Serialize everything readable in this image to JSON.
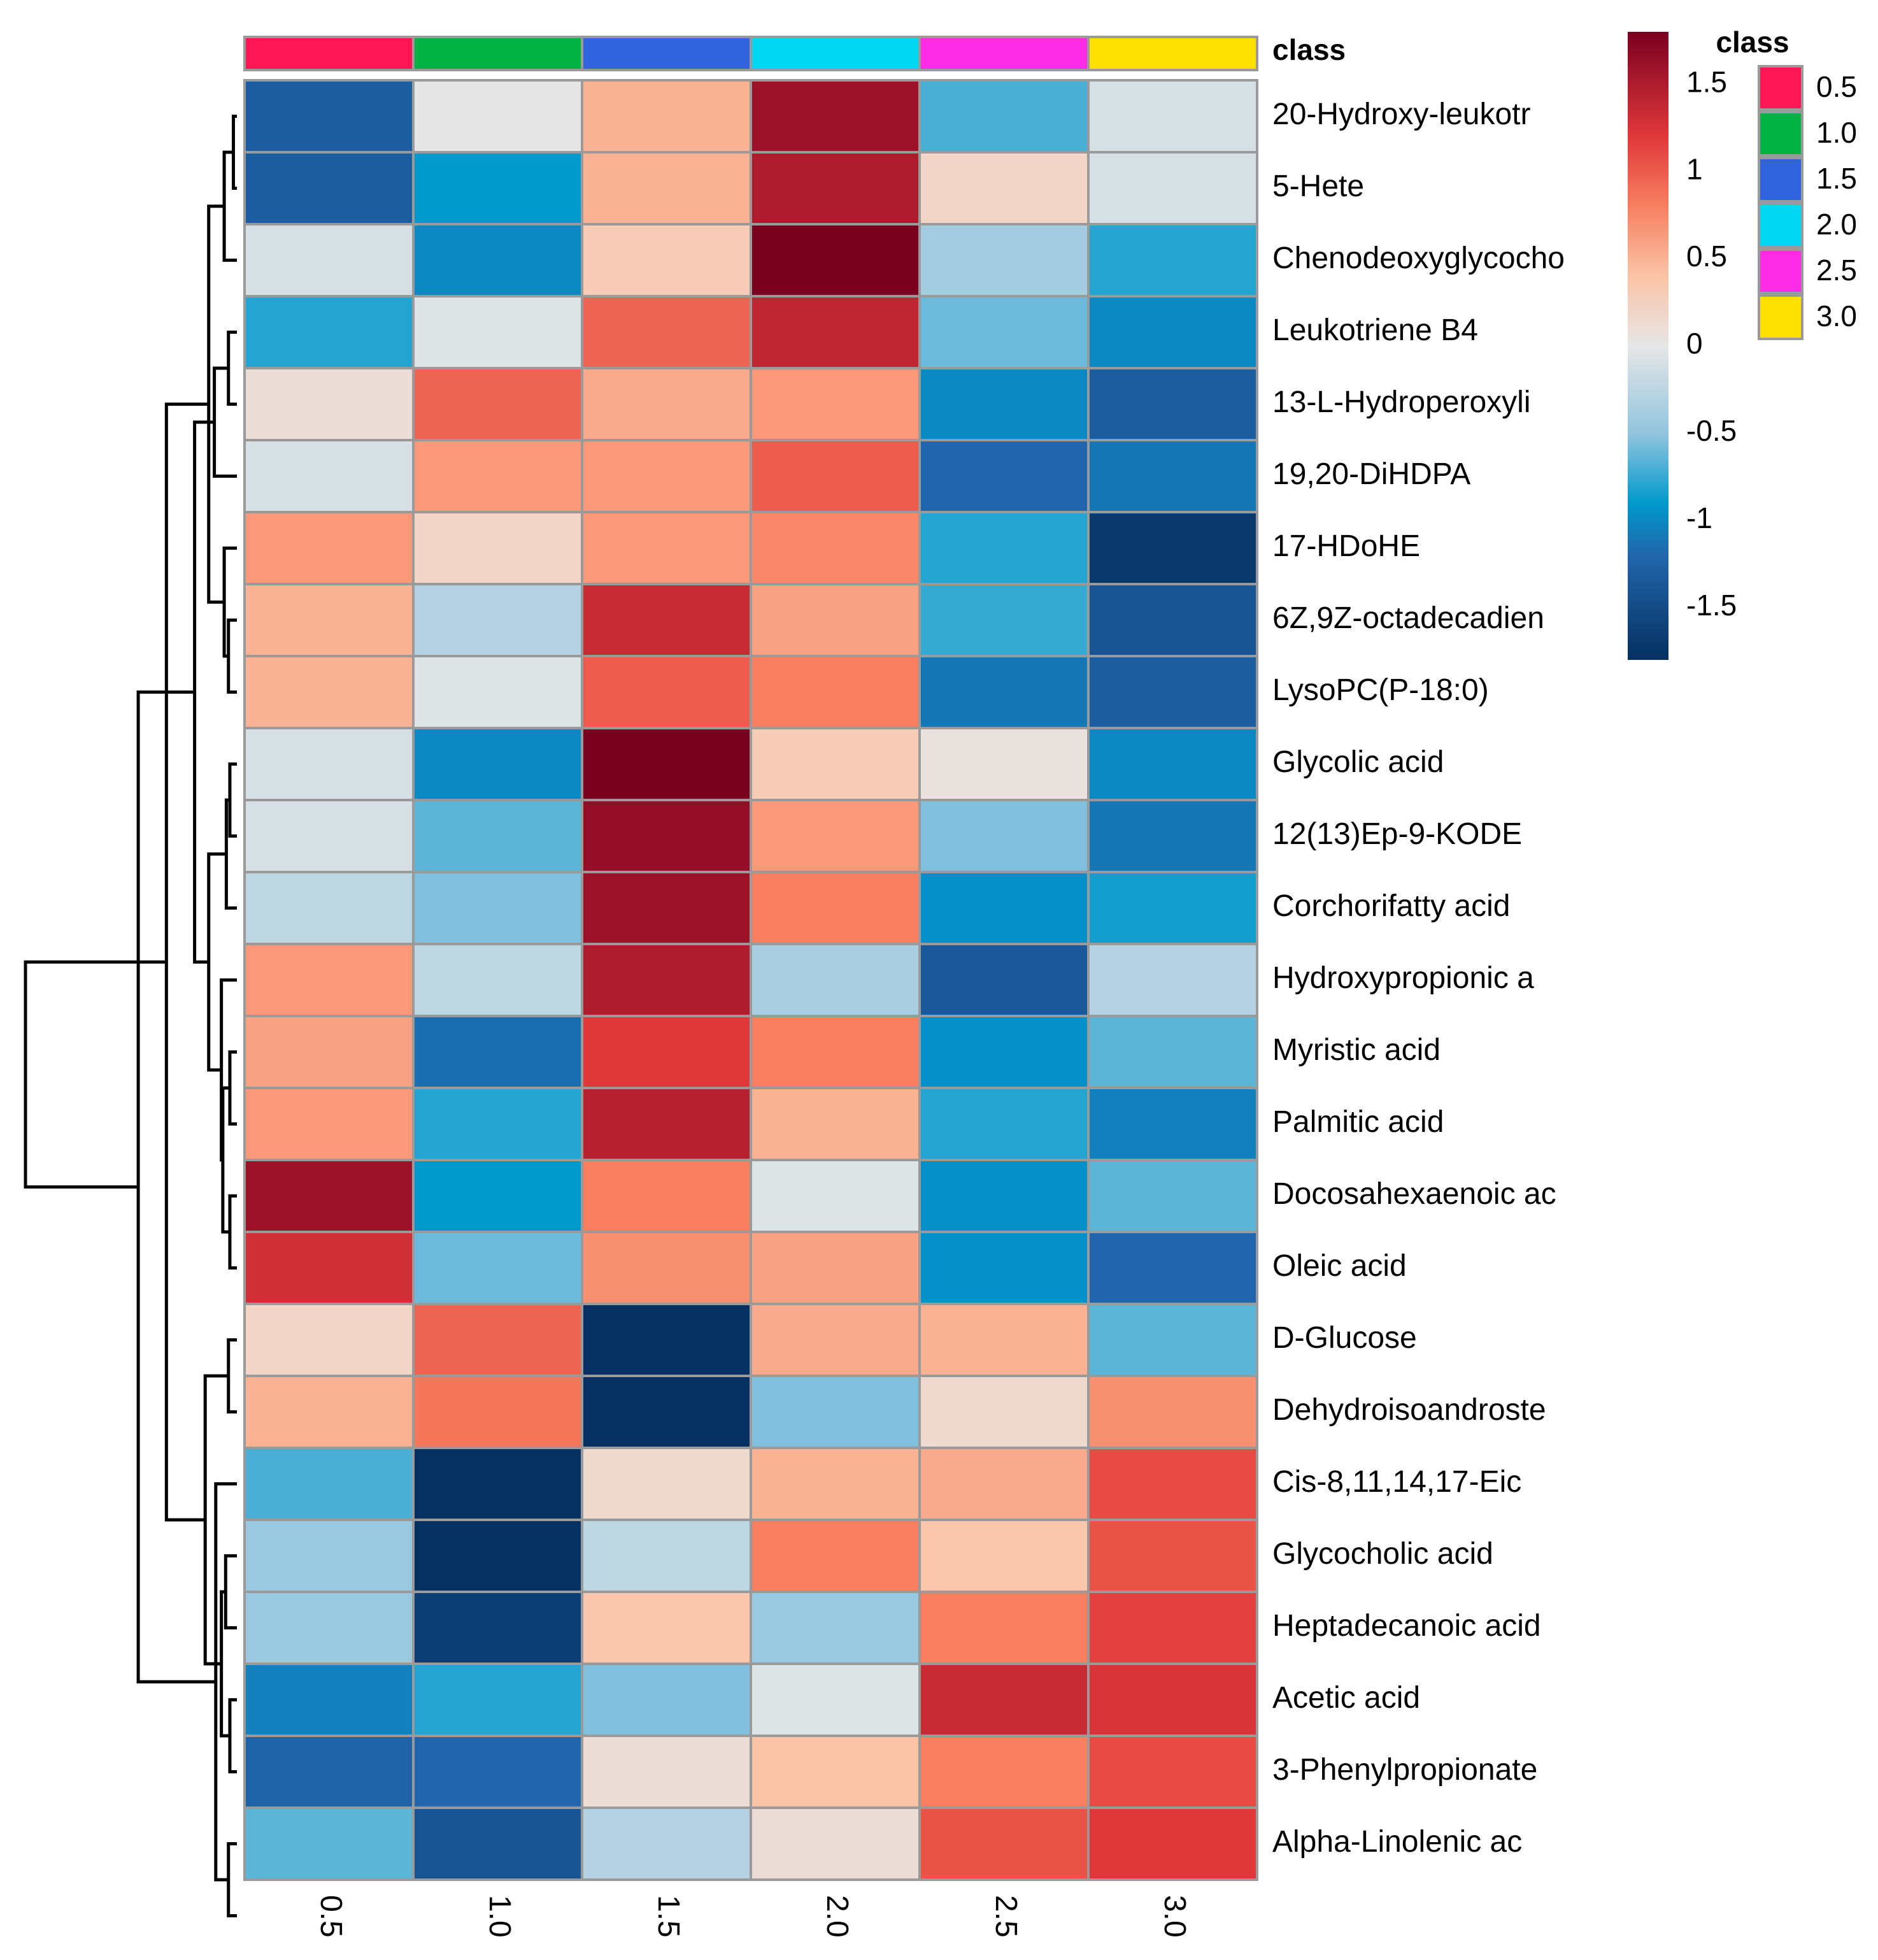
{
  "chart_data": {
    "type": "heatmap",
    "title": "",
    "columns": [
      "0.5",
      "1.0",
      "1.5",
      "2.0",
      "2.5",
      "3.0"
    ],
    "column_classes": [
      "0.5",
      "1.0",
      "1.5",
      "2.0",
      "2.5",
      "3.0"
    ],
    "class_bar_label": "class",
    "rows": [
      "20-Hydroxy-leukotr",
      "5-Hete",
      "Chenodeoxyglycocho",
      "Leukotriene B4",
      "13-L-Hydroperoxyli",
      "19,20-DiHDPA",
      "17-HDoHE",
      "6Z,9Z-octadecadien",
      "LysoPC(P-18:0)",
      "Glycolic acid",
      "12(13)Ep-9-KODE",
      "Corchorifatty acid",
      "Hydroxypropionic a",
      "Myristic acid",
      "Palmitic acid",
      "Docosahexaenoic ac",
      "Oleic acid",
      "D-Glucose",
      "Dehydroisoandroste",
      "Cis-8,11,14,17-Eic",
      "Glycocholic acid",
      "Heptadecanoic acid",
      "Acetic acid",
      "3-Phenylpropionate",
      "Alpha-Linolenic ac"
    ],
    "values": [
      [
        -1.3,
        0.0,
        0.5,
        1.6,
        -0.7,
        -0.1
      ],
      [
        -1.3,
        -0.9,
        0.5,
        1.5,
        0.2,
        -0.1
      ],
      [
        -0.1,
        -1.0,
        0.3,
        1.8,
        -0.4,
        -0.8
      ],
      [
        -0.8,
        -0.05,
        0.95,
        1.4,
        -0.6,
        -1.0
      ],
      [
        0.1,
        0.95,
        0.55,
        0.65,
        -1.0,
        -1.3
      ],
      [
        -0.1,
        0.65,
        0.65,
        1.0,
        -1.2,
        -1.1
      ],
      [
        0.65,
        0.2,
        0.65,
        0.75,
        -0.8,
        -1.7
      ],
      [
        0.5,
        -0.3,
        1.35,
        0.6,
        -0.75,
        -1.4
      ],
      [
        0.5,
        -0.05,
        1.0,
        0.8,
        -1.1,
        -1.3
      ],
      [
        -0.1,
        -1.0,
        1.8,
        0.3,
        0.05,
        -1.0
      ],
      [
        -0.1,
        -0.65,
        1.65,
        0.65,
        -0.55,
        -1.1
      ],
      [
        -0.25,
        -0.55,
        1.6,
        0.8,
        -0.95,
        -0.85
      ],
      [
        0.65,
        -0.25,
        1.5,
        -0.35,
        -1.35,
        -0.3
      ],
      [
        0.6,
        -1.15,
        1.2,
        0.8,
        -0.95,
        -0.65
      ],
      [
        0.65,
        -0.8,
        1.45,
        0.5,
        -0.8,
        -1.05
      ],
      [
        1.6,
        -0.9,
        0.8,
        -0.05,
        -0.95,
        -0.65
      ],
      [
        1.3,
        -0.6,
        0.7,
        0.6,
        -0.95,
        -1.2
      ],
      [
        0.2,
        0.95,
        -1.8,
        0.55,
        0.5,
        -0.65
      ],
      [
        0.5,
        0.85,
        -1.8,
        -0.55,
        0.15,
        0.7
      ],
      [
        -0.7,
        -1.8,
        0.15,
        0.5,
        0.55,
        1.1
      ],
      [
        -0.45,
        -1.8,
        -0.25,
        0.8,
        0.35,
        1.05
      ],
      [
        -0.45,
        -1.65,
        0.35,
        -0.45,
        0.8,
        1.15
      ],
      [
        -1.05,
        -0.8,
        -0.55,
        -0.05,
        1.35,
        1.25
      ],
      [
        -1.25,
        -1.2,
        0.1,
        0.4,
        0.8,
        1.1
      ],
      [
        -0.65,
        -1.4,
        -0.3,
        0.1,
        1.05,
        1.2
      ]
    ],
    "class_colors": [
      "#ff1654",
      "#00b344",
      "#3163dc",
      "#00d7f2",
      "#ff2ce6",
      "#ffe000"
    ],
    "color_scale": {
      "range": [
        -1.8,
        1.8
      ],
      "stops": [
        {
          "v": -1.8,
          "c": "#053061"
        },
        {
          "v": -1.2,
          "c": "#2166ac"
        },
        {
          "v": -0.9,
          "c": "#0099cc"
        },
        {
          "v": -0.5,
          "c": "#92c5de"
        },
        {
          "v": 0.0,
          "c": "#e6e6e6"
        },
        {
          "v": 0.4,
          "c": "#fbc3a6"
        },
        {
          "v": 0.8,
          "c": "#f77f60"
        },
        {
          "v": 1.2,
          "c": "#e0383a"
        },
        {
          "v": 1.8,
          "c": "#7a0020"
        }
      ]
    },
    "colorbar_ticks": [
      1.5,
      1,
      0.5,
      0,
      -0.5,
      -1,
      -1.5
    ],
    "colorbar_tick_labels": [
      "1.5",
      "1",
      "0.5",
      "0",
      "-0.5",
      "-1",
      "-1.5"
    ],
    "legend": {
      "title": "class",
      "entries": [
        "0.5",
        "1.0",
        "1.5",
        "2.0",
        "2.5",
        "3.0"
      ],
      "position": "top-right"
    },
    "dendrogram": {
      "side": "left",
      "merges": [
        {
          "a": 1,
          "b": 2,
          "height": 0.005
        },
        {
          "a": 10,
          "b": 11,
          "height": 0.01
        },
        {
          "a": 14,
          "b": 15,
          "height": 0.01
        },
        {
          "a": 16,
          "b": 17,
          "height": 0.01
        },
        {
          "a": 23,
          "b": 24,
          "height": 0.01
        },
        {
          "a": 4,
          "b": 5,
          "height": 0.012
        },
        {
          "a": 8,
          "b": 9,
          "height": 0.012
        },
        {
          "a": 25,
          "b": 26,
          "height": 0.012
        },
        {
          "a": 18,
          "b": 19,
          "height": 0.012
        },
        {
          "a": 12,
          "b": "n2",
          "height": 0.015
        },
        {
          "a": 21,
          "b": 22,
          "height": 0.016
        },
        {
          "a": "n1",
          "b": 3,
          "height": 0.018
        },
        {
          "a": "n7",
          "b": 7,
          "height": 0.018
        },
        {
          "a": "n3",
          "b": "n4",
          "height": 0.02
        },
        {
          "a": 13,
          "b": "n14",
          "height": 0.022
        },
        {
          "a": "n11",
          "b": "n5",
          "height": 0.022
        },
        {
          "a": 20,
          "b": "n8",
          "height": 0.03
        },
        {
          "a": "n6",
          "b": 6,
          "height": 0.032
        },
        {
          "a": "n12",
          "b": "n13",
          "height": 0.04
        },
        {
          "a": "n10",
          "b": "n15",
          "height": 0.04
        },
        {
          "a": "n9",
          "b": "n16",
          "height": 0.045
        },
        {
          "a": "n18",
          "b": "n20",
          "height": 0.06
        },
        {
          "a": "n19",
          "b": "n21",
          "height": 0.1
        },
        {
          "a": "n17",
          "b": "n22",
          "height": 0.14
        },
        {
          "a": "n23",
          "b": "n24",
          "height": 0.3
        }
      ]
    }
  }
}
